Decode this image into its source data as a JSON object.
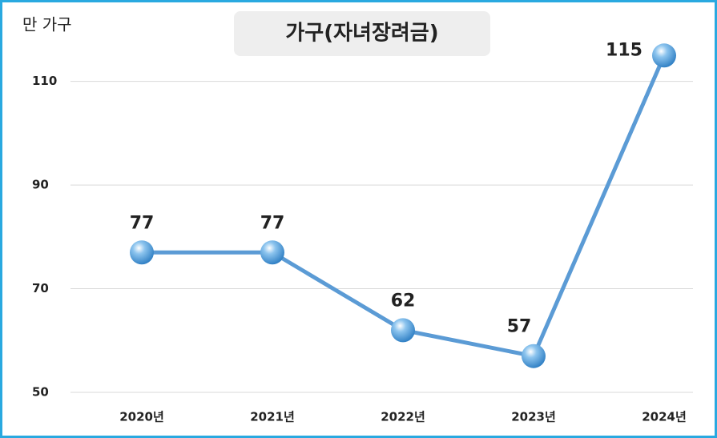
{
  "chart_data": {
    "type": "line",
    "title": "가구(자녀장려금)",
    "y_label": "만 가구",
    "categories": [
      "2020년",
      "2021년",
      "2022년",
      "2023년",
      "2024년"
    ],
    "values": [
      77,
      77,
      62,
      57,
      115
    ],
    "color": "#5b9bd5",
    "ylim": [
      50,
      122
    ],
    "yticks": [
      50,
      70,
      90,
      110
    ],
    "grid": true
  }
}
